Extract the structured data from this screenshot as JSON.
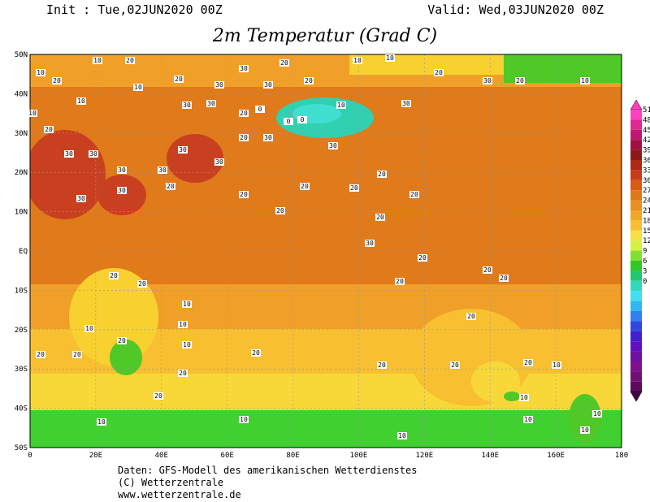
{
  "header": {
    "init": "Init : Tue,02JUN2020 00Z",
    "valid": "Valid: Wed,03JUN2020 00Z",
    "title": "2m Temperatur (Grad C)"
  },
  "map": {
    "lat_labels": [
      "50N",
      "40N",
      "30N",
      "20N",
      "10N",
      "EQ",
      "10S",
      "20S",
      "30S",
      "40S",
      "50S"
    ],
    "lon_labels": [
      "0",
      "20E",
      "40E",
      "60E",
      "80E",
      "100E",
      "120E",
      "140E",
      "160E",
      "180"
    ],
    "contour_labels": [
      "10",
      "20",
      "10",
      "20",
      "10",
      "20",
      "30",
      "20",
      "30",
      "20",
      "10",
      "10",
      "30",
      "30",
      "20",
      "30",
      "0",
      "0",
      "0",
      "10",
      "30",
      "20",
      "30",
      "20",
      "10",
      "10",
      "20",
      "10",
      "30",
      "30",
      "30",
      "30",
      "30",
      "20",
      "30",
      "30",
      "30",
      "20",
      "20",
      "30",
      "20",
      "20",
      "30",
      "20",
      "20",
      "20",
      "20",
      "30",
      "20",
      "20",
      "20",
      "20",
      "20",
      "10",
      "10",
      "10",
      "20",
      "20",
      "20",
      "10",
      "20",
      "20",
      "20",
      "20",
      "20",
      "20",
      "10",
      "10",
      "10",
      "10",
      "10",
      "10",
      "10",
      "10",
      "20",
      "20"
    ]
  },
  "colorbar": {
    "labels": [
      "51",
      "48",
      "45",
      "42",
      "39",
      "36",
      "33",
      "30",
      "27",
      "24",
      "21",
      "18",
      "15",
      "12",
      "9",
      "6",
      "3",
      "0"
    ]
  },
  "footer": [
    "Daten: GFS-Modell des amerikanischen Wetterdienstes",
    "(C) Wetterzentrale",
    "www.wetterzentrale.de"
  ]
}
